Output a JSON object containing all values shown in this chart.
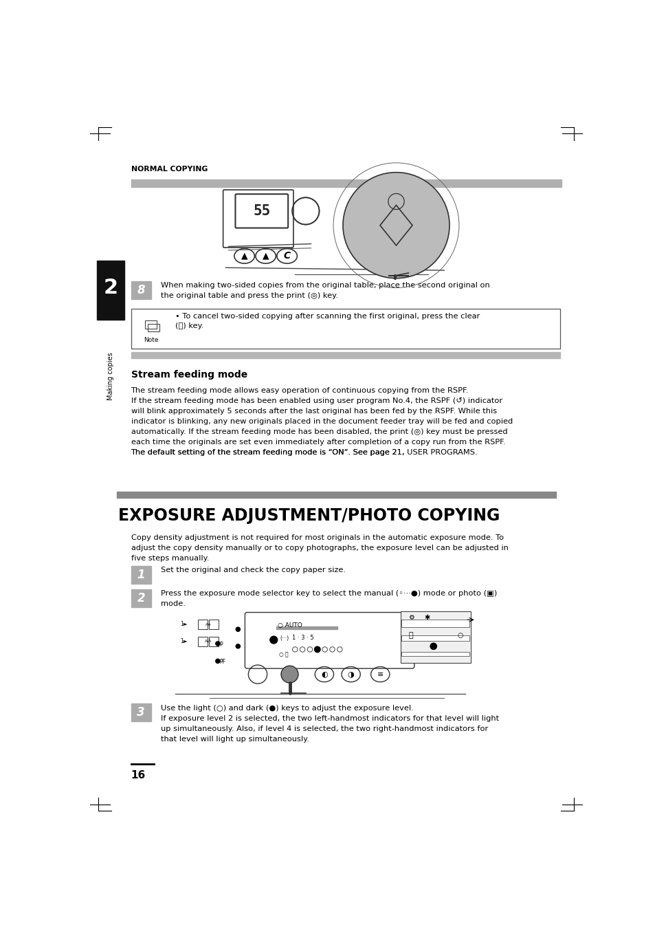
{
  "page_bg": "#ffffff",
  "page_width": 9.54,
  "page_height": 13.51,
  "dpi": 100,
  "header_text": "NORMAL COPYING",
  "section_title": "EXPOSURE ADJUSTMENT/PHOTO COPYING",
  "sidebar_text": "Making copies",
  "sidebar_num": "2",
  "step8_label": "8",
  "step8_text": "When making two-sided copies from the original table, place the second original on\nthe original table and press the print (◎) key.",
  "note_text": "• To cancel two-sided copying after scanning the first original, press the clear\n(Ⓒ) key.",
  "note_label": "Note",
  "stream_heading": "Stream feeding mode",
  "stream_body_lines": [
    "The stream feeding mode allows easy operation of continuous copying from the RSPF.",
    "If the stream feeding mode has been enabled using user program No.4, the RSPF (↺) indicator",
    "will blink approximately 5 seconds after the last original has been fed by the RSPF. While this",
    "indicator is blinking, any new originals placed in the document feeder tray will be fed and copied",
    "automatically. If the stream feeding mode has been disabled, the print (◎) key must be pressed",
    "each time the originals are set even immediately after completion of a copy run from the RSPF.",
    "The default setting of the stream feeding mode is “ON”. See page 21, USER PROGRAMS."
  ],
  "exposure_intro_lines": [
    "Copy density adjustment is not required for most originals in the automatic exposure mode. To",
    "adjust the copy density manually or to copy photographs, the exposure level can be adjusted in",
    "five steps manually."
  ],
  "step1_label": "1",
  "step1_text": "Set the original and check the copy paper size.",
  "step2_label": "2",
  "step2_text_line1": "Press the exposure mode selector key to select the manual (◦···●) mode or photo (▣)",
  "step2_text_line2": "mode.",
  "step3_label": "3",
  "step3_text_lines": [
    "Use the light (○) and dark (●) keys to adjust the exposure level.",
    "If exposure level 2 is selected, the two left-handmost indicators for that level will light",
    "up simultaneously. Also, if level 4 is selected, the two right-handmost indicators for",
    "that level will light up simultaneously."
  ],
  "page_number": "16",
  "text_color": "#000000",
  "body_fontsize": 8.2,
  "small_fontsize": 7.5
}
